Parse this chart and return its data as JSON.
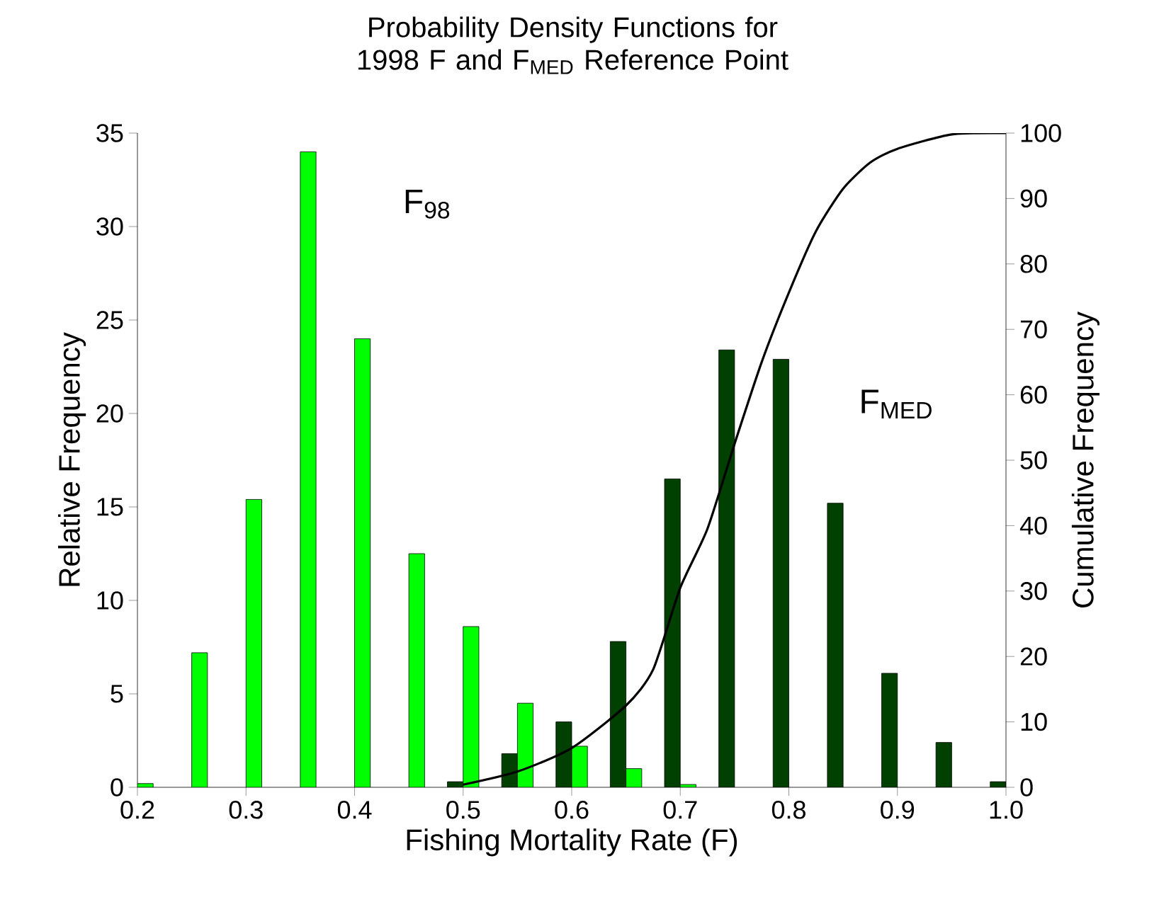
{
  "chart_data": {
    "type": "bar",
    "title": "Probability Density Functions for 1998 F and F$_{MED}$ Reference Point",
    "xlabel": "Fishing Mortality Rate (F)",
    "ylabel": "Relative Frequency",
    "y2label": "Cumulative Frequency",
    "x": [
      0.2,
      0.25,
      0.3,
      0.35,
      0.4,
      0.45,
      0.5,
      0.55,
      0.6,
      0.65,
      0.7,
      0.75,
      0.8,
      0.85,
      0.9,
      0.95,
      1.0
    ],
    "series": [
      {
        "name": "F$_{MED}$",
        "color": "#004000",
        "values": [
          null,
          null,
          null,
          null,
          null,
          null,
          0.3,
          1.8,
          3.5,
          7.8,
          16.5,
          23.4,
          22.9,
          15.2,
          6.1,
          2.4,
          0.3
        ]
      },
      {
        "name": "F$_{98}$",
        "color": "#00ff00",
        "values": [
          0.2,
          7.2,
          15.4,
          34.0,
          24.0,
          12.5,
          8.6,
          4.5,
          2.2,
          1.0,
          0.15,
          null,
          null,
          null,
          null,
          null,
          null
        ]
      },
      {
        "type": "line",
        "axis": "y2",
        "color": "#000000",
        "x": [
          0.5,
          0.55,
          0.6,
          0.65,
          0.675,
          0.7,
          0.725,
          0.75,
          0.775,
          0.8,
          0.825,
          0.85,
          0.875,
          0.9,
          0.95,
          1.0
        ],
        "values": [
          0.4,
          2.4,
          6.0,
          12.5,
          18,
          30.5,
          39.5,
          52.5,
          65,
          75.6,
          85,
          91.5,
          95.5,
          97.6,
          99.8,
          100
        ]
      }
    ],
    "xlim": [
      0.2,
      1.0
    ],
    "xticks": [
      0.2,
      0.3,
      0.4,
      0.5,
      0.6,
      0.7,
      0.8,
      0.9,
      {
        "value": 1.0,
        "label": "1.0"
      }
    ],
    "ylim": [
      0,
      35
    ],
    "yticks": [
      0,
      5,
      10,
      15,
      20,
      25,
      30,
      35
    ],
    "y2lim": [
      0,
      100
    ],
    "y2ticks": [
      0,
      10,
      20,
      30,
      40,
      50,
      60,
      70,
      80,
      90,
      100
    ]
  }
}
